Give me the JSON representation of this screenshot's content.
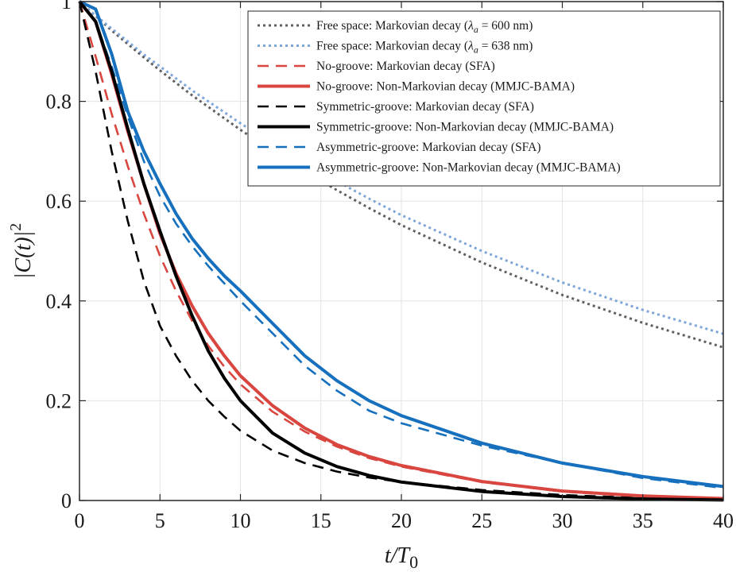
{
  "chart_data": {
    "type": "line",
    "xlabel_main": "t/T",
    "xlabel_sub": "0",
    "ylabel": "|C(t)|",
    "ylabel_sup": "2",
    "xlim": [
      0,
      40
    ],
    "ylim": [
      0,
      1
    ],
    "xticks": [
      0,
      5,
      10,
      15,
      20,
      25,
      30,
      35,
      40
    ],
    "yticks": [
      0,
      0.2,
      0.4,
      0.6,
      0.8,
      1
    ],
    "ytick_labels": [
      "0",
      "0.2",
      "0.4",
      "0.6",
      "0.8",
      "1"
    ],
    "grid": true,
    "legend_position": "top-right",
    "x": [
      0,
      1,
      2,
      3,
      4,
      5,
      6,
      7,
      8,
      9,
      10,
      12,
      14,
      16,
      18,
      20,
      25,
      30,
      35,
      40
    ],
    "series": [
      {
        "name": "Free space: Markovian decay (λa = 600 nm)",
        "legend_before": "Free space: Markovian decay (",
        "legend_sym": "λ",
        "legend_sub": "a",
        "legend_after": " = 600 nm)",
        "color": "#606060",
        "style": "dotted",
        "width": 3,
        "values": [
          1.0,
          0.971,
          0.942,
          0.915,
          0.888,
          0.862,
          0.837,
          0.812,
          0.789,
          0.766,
          0.743,
          0.7,
          0.66,
          0.622,
          0.586,
          0.552,
          0.477,
          0.412,
          0.356,
          0.307
        ]
      },
      {
        "name": "Free space: Markovian decay (λa = 638 nm)",
        "legend_before": "Free space: Markovian decay (",
        "legend_sym": "λ",
        "legend_sub": "a",
        "legend_after": " = 638 nm)",
        "color": "#7fa6d9",
        "style": "dotted",
        "width": 3,
        "values": [
          1.0,
          0.972,
          0.946,
          0.92,
          0.894,
          0.87,
          0.846,
          0.822,
          0.8,
          0.778,
          0.756,
          0.715,
          0.677,
          0.64,
          0.605,
          0.572,
          0.5,
          0.437,
          0.382,
          0.334
        ]
      },
      {
        "name": "No-groove: Markovian decay (SFA)",
        "legend_before": "No-groove: Markovian decay (SFA)",
        "color": "#d9453f",
        "style": "dashed",
        "width": 2.6,
        "values": [
          1.0,
          0.89,
          0.775,
          0.67,
          0.575,
          0.49,
          0.42,
          0.36,
          0.31,
          0.268,
          0.233,
          0.178,
          0.138,
          0.108,
          0.085,
          0.068,
          0.037,
          0.018,
          0.008,
          0.003
        ]
      },
      {
        "name": "No-groove: Non-Markovian decay (MMJC-BAMA)",
        "legend_before": "No-groove: Non-Markovian decay (MMJC-BAMA)",
        "color": "#d9453f",
        "style": "solid",
        "width": 4,
        "values": [
          1.0,
          0.96,
          0.855,
          0.74,
          0.635,
          0.535,
          0.455,
          0.39,
          0.335,
          0.29,
          0.25,
          0.19,
          0.145,
          0.112,
          0.088,
          0.07,
          0.038,
          0.019,
          0.009,
          0.004
        ]
      },
      {
        "name": "Symmetric-groove: Markovian decay (SFA)",
        "legend_before": "Symmetric-groove: Markovian decay (SFA)",
        "color": "#000000",
        "style": "dashed",
        "width": 2.6,
        "values": [
          1.0,
          0.86,
          0.7,
          0.56,
          0.44,
          0.35,
          0.29,
          0.24,
          0.2,
          0.168,
          0.14,
          0.1,
          0.075,
          0.058,
          0.046,
          0.037,
          0.021,
          0.011,
          0.005,
          0.002
        ]
      },
      {
        "name": "Symmetric-groove: Non-Markovian decay (MMJC-BAMA)",
        "legend_before": "Symmetric-groove: Non-Markovian decay (MMJC-BAMA)",
        "color": "#000000",
        "style": "solid",
        "width": 4,
        "values": [
          1.0,
          0.96,
          0.86,
          0.745,
          0.635,
          0.54,
          0.45,
          0.37,
          0.3,
          0.245,
          0.2,
          0.135,
          0.095,
          0.068,
          0.05,
          0.037,
          0.018,
          0.008,
          0.003,
          0.001
        ]
      },
      {
        "name": "Asymmetric-groove: Markovian decay (SFA)",
        "legend_before": "Asymmetric-groove: Markovian decay (SFA)",
        "color": "#1670bd",
        "style": "dashed",
        "width": 2.6,
        "values": [
          1.0,
          0.96,
          0.87,
          0.77,
          0.68,
          0.61,
          0.555,
          0.51,
          0.47,
          0.435,
          0.4,
          0.335,
          0.27,
          0.22,
          0.18,
          0.155,
          0.11,
          0.075,
          0.045,
          0.025
        ]
      },
      {
        "name": "Asymmetric-groove: Non-Markovian decay (MMJC-BAMA)",
        "legend_before": "Asymmetric-groove: Non-Markovian decay (MMJC-BAMA)",
        "color": "#1670bd",
        "style": "solid",
        "width": 4,
        "values": [
          1.0,
          0.985,
          0.895,
          0.78,
          0.7,
          0.635,
          0.575,
          0.525,
          0.485,
          0.45,
          0.42,
          0.355,
          0.29,
          0.24,
          0.2,
          0.17,
          0.115,
          0.075,
          0.048,
          0.028
        ]
      }
    ]
  }
}
